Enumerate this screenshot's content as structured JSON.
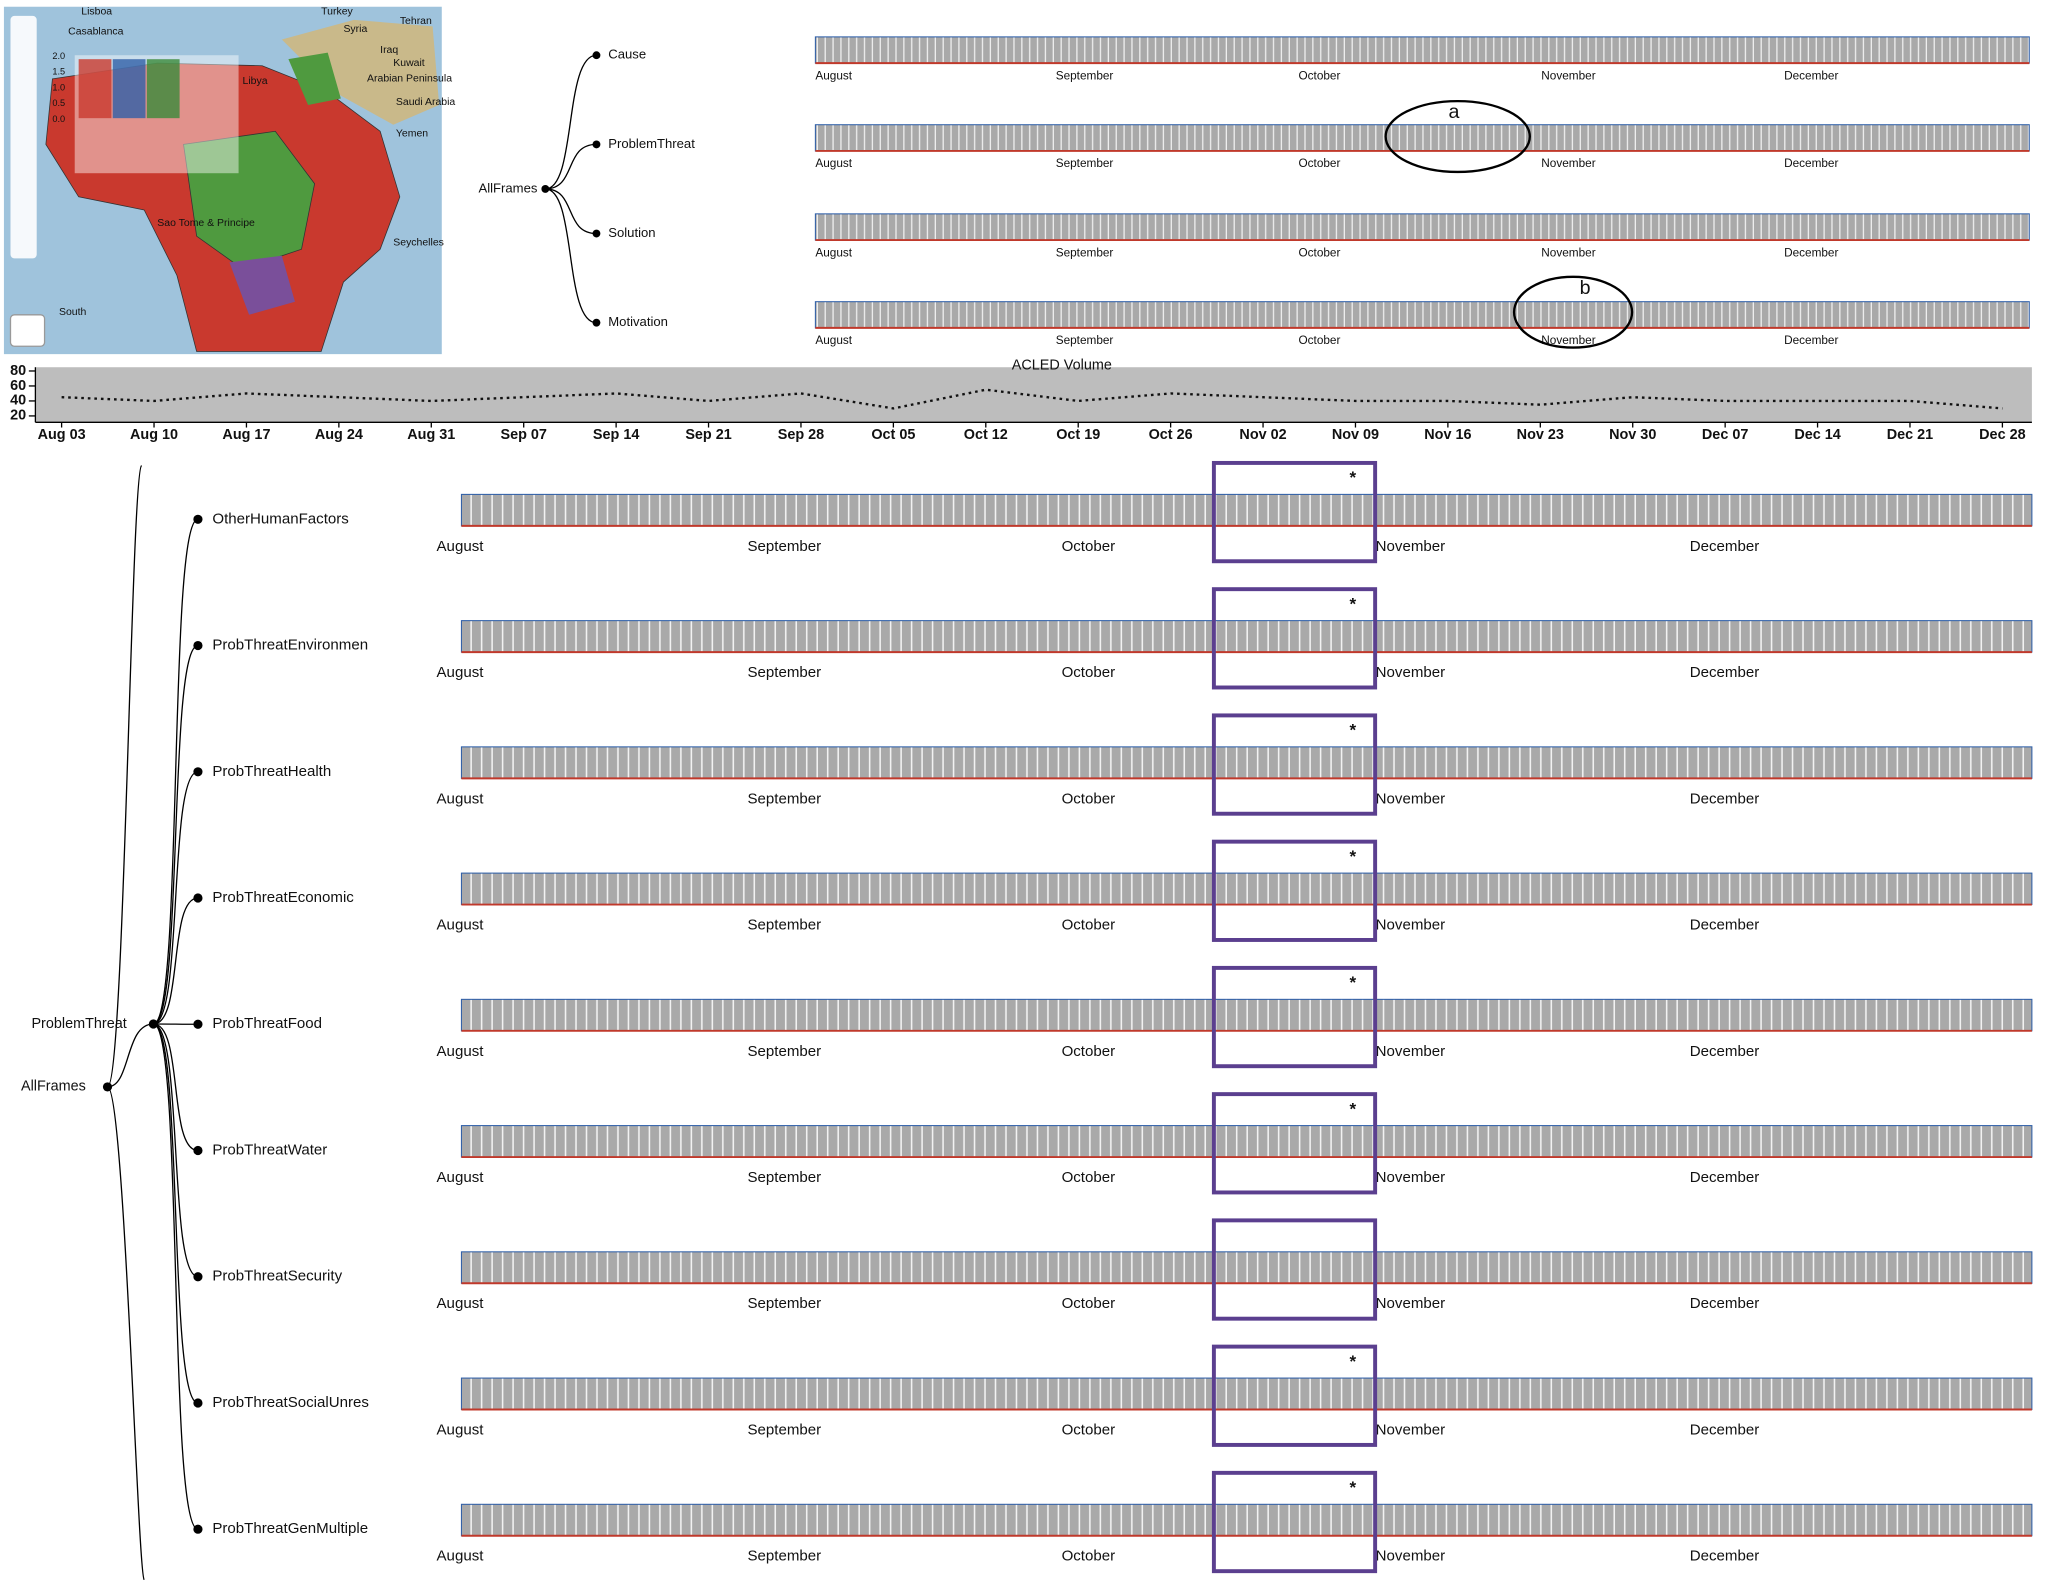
{
  "map": {
    "labels": [
      "Lisboa",
      "Turkey",
      "Syria",
      "Tehran",
      "Casablanca",
      "Iraq",
      "Kuwait",
      "Libya",
      "Saudi Arabia",
      "Arabian Peninsula",
      "Yemen",
      "South",
      "Sao Tome & Principe",
      "Seychelles"
    ],
    "legend_ticks": [
      "2.0",
      "1.5",
      "1.0",
      "0.5",
      "0.0"
    ]
  },
  "top_tree": {
    "root": "AllFrames",
    "children": [
      "Cause",
      "ProblemThreat",
      "Solution",
      "Motivation"
    ]
  },
  "months": [
    "August",
    "September",
    "October",
    "November",
    "December"
  ],
  "annotations": [
    "a",
    "b"
  ],
  "chart_data": {
    "type": "line",
    "title": "ACLED Volume",
    "categories": [
      "Aug 03",
      "Aug 10",
      "Aug 17",
      "Aug 24",
      "Aug 31",
      "Sep 07",
      "Sep 14",
      "Sep 21",
      "Sep 28",
      "Oct 05",
      "Oct 12",
      "Oct 19",
      "Oct 26",
      "Nov 02",
      "Nov 09",
      "Nov 16",
      "Nov 23",
      "Nov 30",
      "Dec 07",
      "Dec 14",
      "Dec 21",
      "Dec 28"
    ],
    "values": [
      45,
      40,
      50,
      45,
      40,
      45,
      50,
      40,
      50,
      30,
      55,
      40,
      50,
      45,
      40,
      40,
      35,
      45,
      40,
      40,
      40,
      30
    ],
    "ylim": [
      15,
      85
    ],
    "yticks": [
      20,
      40,
      60,
      80
    ]
  },
  "bottom_tree": {
    "root": "AllFrames",
    "parent": "ProblemThreat",
    "rows": [
      {
        "name": "OtherHumanFactors",
        "marker": "*"
      },
      {
        "name": "ProbThreatEnvironmen",
        "marker": "*"
      },
      {
        "name": "ProbThreatHealth",
        "marker": "*"
      },
      {
        "name": "ProbThreatEconomic",
        "marker": "*"
      },
      {
        "name": "ProbThreatFood",
        "marker": "*"
      },
      {
        "name": "ProbThreatWater",
        "marker": "*"
      },
      {
        "name": "ProbThreatSecurity"
      },
      {
        "name": "ProbThreatSocialUnres",
        "marker": "*"
      },
      {
        "name": "ProbThreatGenMultiple",
        "marker": "*"
      }
    ]
  }
}
